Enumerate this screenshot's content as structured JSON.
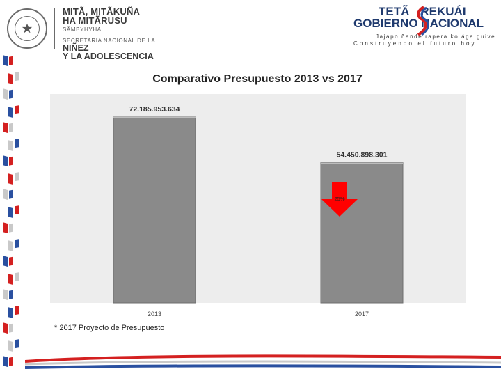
{
  "header": {
    "ministry_line1": "MITÃ, MITÃKUÑA",
    "ministry_line2": "HA MITÃRUSU",
    "ministry_line3": "SÃMBYHYHA",
    "ministry_line4": "SECRETARIA NACIONAL DE LA",
    "ministry_line5": "NIÑEZ",
    "ministry_line6": "Y LA ADOLESCENCIA",
    "gov_tl": "TETÃ",
    "gov_tr": "REKUÁI",
    "gov_bl": "GOBIERNO",
    "gov_br": "NACIONAL",
    "gov_tag1": "Jajapo ñande rapera ko ága guive",
    "gov_tag2": "Construyendo el futuro hoy",
    "colors": {
      "navy": "#1f3a6e",
      "red": "#d42020",
      "blue": "#2a50a0"
    }
  },
  "chart_data": {
    "type": "bar",
    "title": "Comparativo Presupuesto 2013 vs 2017",
    "categories": [
      "2013",
      "2017"
    ],
    "values": [
      72185953634,
      54450898301
    ],
    "data_labels": [
      "72.185.953.634",
      "54.450.898.301"
    ],
    "annotation": {
      "category": "2017",
      "text": "25%",
      "shape": "down-arrow",
      "color": "#ff0000"
    },
    "bar_color": "#8a8a8a",
    "background": "#ededed",
    "grid": false,
    "legend": "none"
  },
  "footnote": "* 2017 Proyecto de Presupuesto"
}
